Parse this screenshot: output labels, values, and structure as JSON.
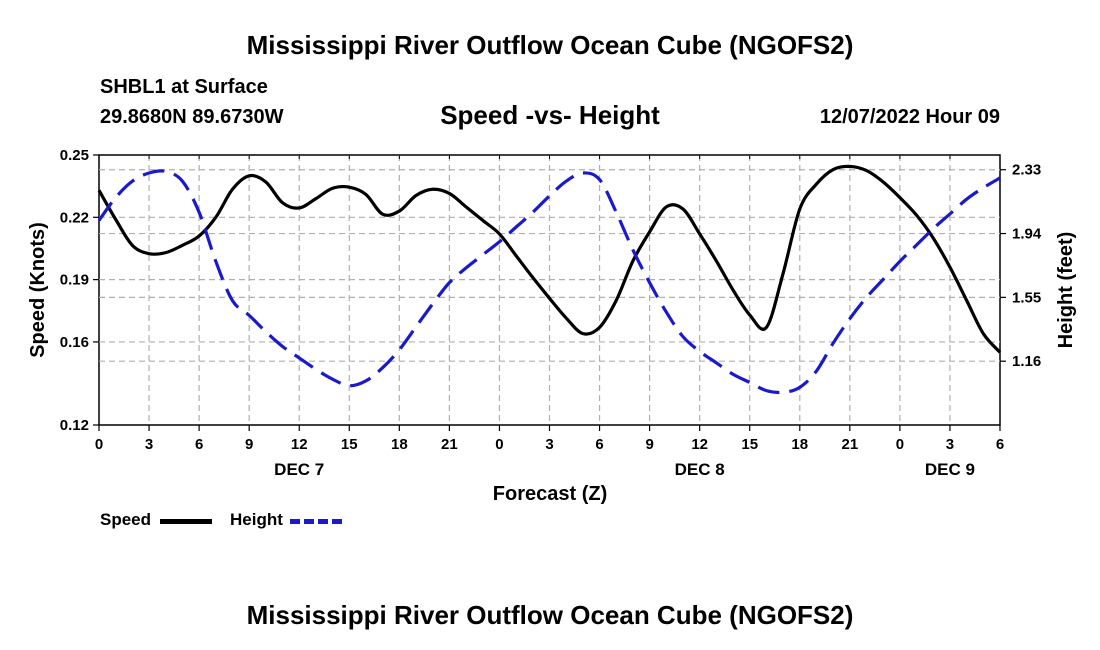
{
  "header": {
    "title": "Mississippi River Outflow Ocean Cube (NGOFS2)",
    "station": "SHBL1 at Surface",
    "coords": "29.8680N  89.6730W",
    "subtitle": "Speed -vs- Height",
    "datetime": "12/07/2022 Hour 09"
  },
  "footer": {
    "title": "Mississippi River Outflow Ocean Cube (NGOFS2)"
  },
  "legend": {
    "speed_label": "Speed",
    "height_label": "Height",
    "speed_color": "#000000",
    "height_color": "#1a1acc"
  },
  "chart_data": {
    "type": "line",
    "title": "Speed -vs- Height",
    "xlabel": "Forecast (Z)",
    "ylabel": "Speed (Knots)",
    "y2label": "Height (feet)",
    "x_unit": "forecast hours",
    "xlim": [
      0,
      54
    ],
    "ylim": [
      0.12,
      0.25
    ],
    "y2lim": [
      0.77,
      2.42
    ],
    "grid": true,
    "x_ticks": [
      0,
      3,
      6,
      9,
      12,
      15,
      18,
      21,
      24,
      27,
      30,
      33,
      36,
      39,
      42,
      45,
      48,
      51,
      54
    ],
    "x_tick_labels": [
      "0",
      "3",
      "6",
      "9",
      "12",
      "15",
      "18",
      "21",
      "0",
      "3",
      "6",
      "9",
      "12",
      "15",
      "18",
      "21",
      "0",
      "3",
      "6"
    ],
    "day_labels": [
      {
        "x": 12,
        "label": "DEC 7"
      },
      {
        "x": 36,
        "label": "DEC 8"
      },
      {
        "x": 51,
        "label": "DEC 9"
      }
    ],
    "y_ticks": [
      0.12,
      0.16,
      0.19,
      0.22,
      0.25
    ],
    "y_tick_labels": [
      "0.12",
      "0.16",
      "0.19",
      "0.22",
      "0.25"
    ],
    "y2_ticks": [
      1.16,
      1.55,
      1.94,
      2.33
    ],
    "y2_tick_labels": [
      "1.16",
      "1.55",
      "1.94",
      "2.33"
    ],
    "series": [
      {
        "name": "Speed",
        "axis": "left",
        "color": "#000000",
        "dash": "solid",
        "x": [
          0,
          1,
          2,
          3,
          4,
          5,
          6,
          7,
          8,
          9,
          10,
          11,
          12,
          13,
          14,
          15,
          16,
          17,
          18,
          19,
          20,
          21,
          22,
          23,
          24,
          25,
          26,
          27,
          28,
          29,
          30,
          31,
          32,
          33,
          34,
          35,
          36,
          37,
          38,
          39,
          40,
          41,
          42,
          43,
          44,
          45,
          46,
          47,
          48,
          49,
          50,
          51,
          52,
          53,
          54
        ],
        "values": [
          0.233,
          0.219,
          0.2065,
          0.2025,
          0.203,
          0.2065,
          0.211,
          0.22,
          0.2335,
          0.24,
          0.237,
          0.227,
          0.2245,
          0.229,
          0.234,
          0.2345,
          0.231,
          0.2215,
          0.223,
          0.2305,
          0.2335,
          0.2315,
          0.225,
          0.2185,
          0.212,
          0.2015,
          0.191,
          0.181,
          0.1715,
          0.164,
          0.167,
          0.18,
          0.199,
          0.213,
          0.225,
          0.224,
          0.212,
          0.199,
          0.185,
          0.173,
          0.167,
          0.193,
          0.224,
          0.236,
          0.243,
          0.2445,
          0.2425,
          0.237,
          0.2295,
          0.221,
          0.21,
          0.196,
          0.18,
          0.164,
          0.155
        ]
      },
      {
        "name": "Height",
        "axis": "right",
        "color": "#1a1acc",
        "dash": "dashed",
        "x": [
          0,
          1,
          2,
          3,
          4,
          5,
          6,
          7,
          8,
          9,
          10,
          11,
          12,
          13,
          14,
          15,
          16,
          17,
          18,
          19,
          20,
          21,
          22,
          23,
          24,
          25,
          26,
          27,
          28,
          29,
          30,
          31,
          32,
          33,
          34,
          35,
          36,
          37,
          38,
          39,
          40,
          41,
          42,
          43,
          44,
          45,
          46,
          47,
          48,
          49,
          50,
          51,
          52,
          53,
          54
        ],
        "values": [
          2.02,
          2.16,
          2.26,
          2.31,
          2.32,
          2.26,
          2.07,
          1.77,
          1.53,
          1.44,
          1.34,
          1.25,
          1.18,
          1.11,
          1.05,
          1.01,
          1.04,
          1.12,
          1.23,
          1.37,
          1.51,
          1.64,
          1.73,
          1.81,
          1.89,
          1.98,
          2.07,
          2.17,
          2.26,
          2.31,
          2.27,
          2.07,
          1.84,
          1.64,
          1.46,
          1.31,
          1.22,
          1.15,
          1.08,
          1.03,
          0.98,
          0.97,
          1.0,
          1.1,
          1.27,
          1.42,
          1.55,
          1.66,
          1.77,
          1.87,
          1.97,
          2.06,
          2.15,
          2.22,
          2.28
        ]
      }
    ]
  }
}
